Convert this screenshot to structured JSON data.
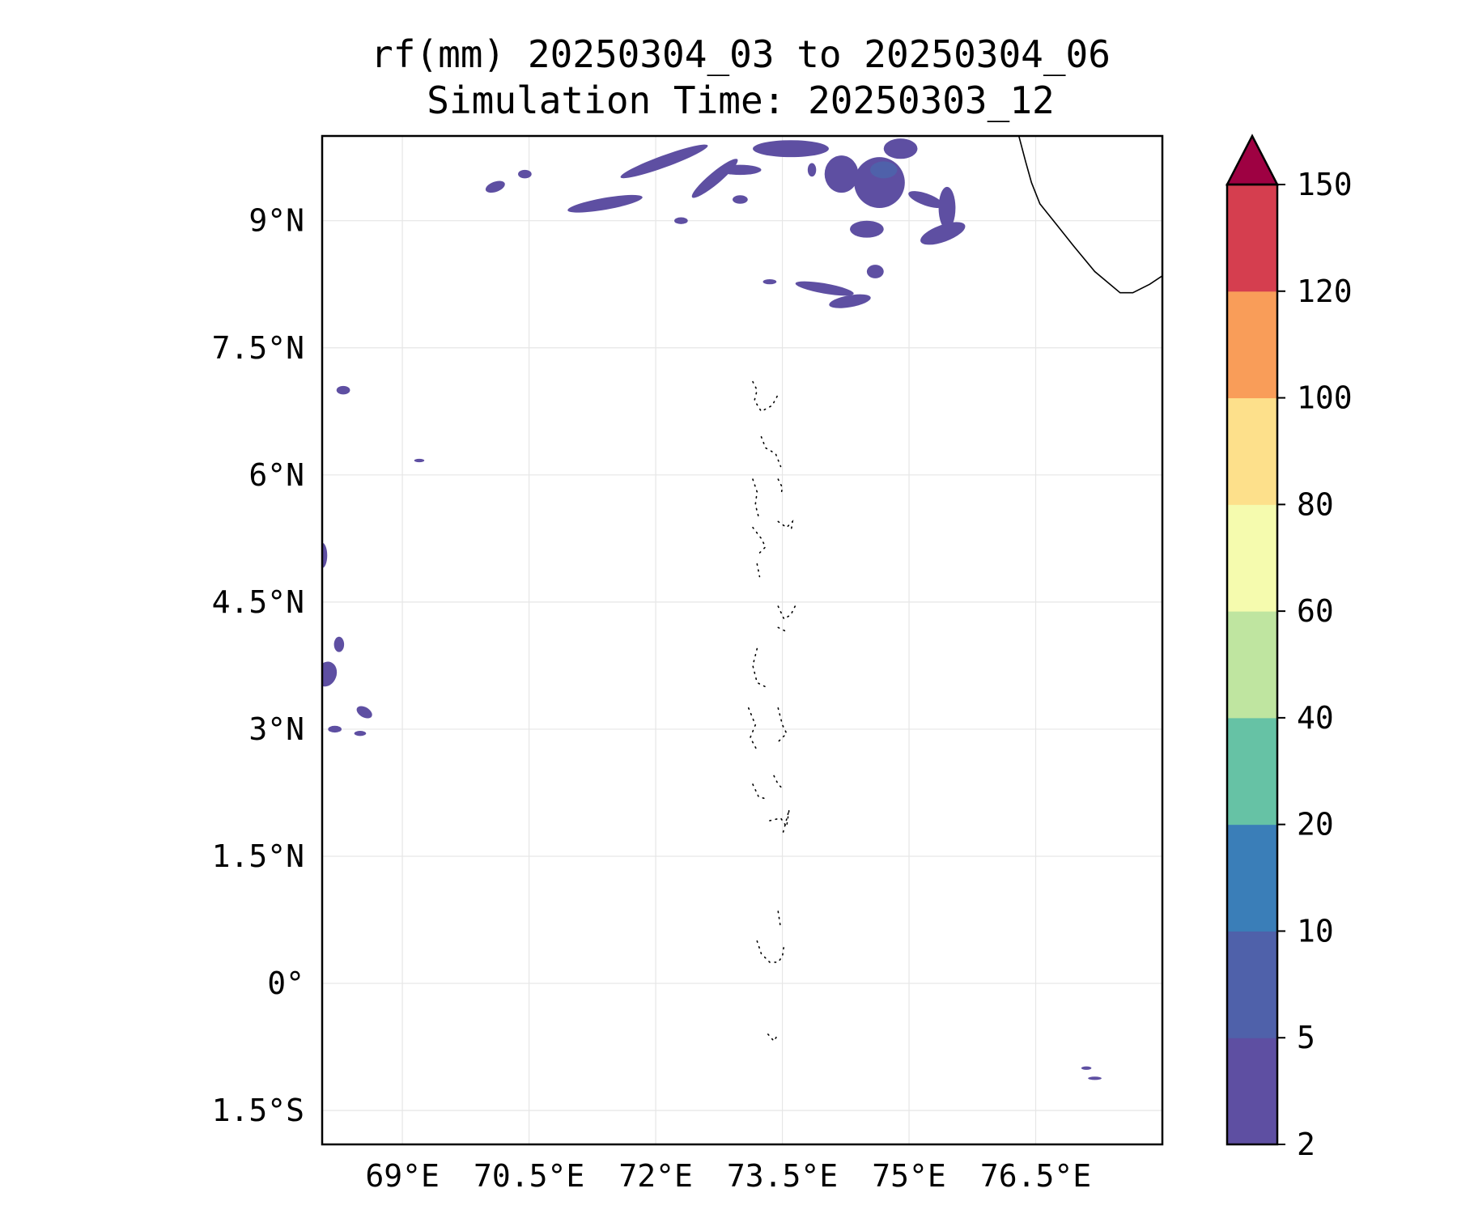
{
  "title": {
    "line1": "rf(mm) 20250304_03 to 20250304_06",
    "line2": "Simulation Time: 20250303_12"
  },
  "map": {
    "lon_range": [
      68.05,
      78.0
    ],
    "lat_range": [
      -1.9,
      10.0
    ],
    "x_ticks": [
      {
        "value": 69.0,
        "label": "69°E"
      },
      {
        "value": 70.5,
        "label": "70.5°E"
      },
      {
        "value": 72.0,
        "label": "72°E"
      },
      {
        "value": 73.5,
        "label": "73.5°E"
      },
      {
        "value": 75.0,
        "label": "75°E"
      },
      {
        "value": 76.5,
        "label": "76.5°E"
      }
    ],
    "y_ticks": [
      {
        "value": 9.0,
        "label": "9°N"
      },
      {
        "value": 7.5,
        "label": "7.5°N"
      },
      {
        "value": 6.0,
        "label": "6°N"
      },
      {
        "value": 4.5,
        "label": "4.5°N"
      },
      {
        "value": 3.0,
        "label": "3°N"
      },
      {
        "value": 1.5,
        "label": "1.5°N"
      },
      {
        "value": 0.0,
        "label": "0°"
      },
      {
        "value": -1.5,
        "label": "1.5°S"
      }
    ],
    "gridlines": true,
    "rain_blobs": [
      {
        "lon": 72.1,
        "lat": 9.7,
        "rx": 0.55,
        "ry": 0.07,
        "rot": -20,
        "level": 0
      },
      {
        "lon": 71.4,
        "lat": 9.2,
        "rx": 0.45,
        "ry": 0.07,
        "rot": -10,
        "level": 0
      },
      {
        "lon": 72.7,
        "lat": 9.5,
        "rx": 0.35,
        "ry": 0.07,
        "rot": -40,
        "level": 0
      },
      {
        "lon": 73.0,
        "lat": 9.6,
        "rx": 0.25,
        "ry": 0.06,
        "rot": 0,
        "level": 0
      },
      {
        "lon": 73.6,
        "lat": 9.85,
        "rx": 0.45,
        "ry": 0.1,
        "rot": 0,
        "level": 0
      },
      {
        "lon": 74.2,
        "lat": 9.55,
        "rx": 0.2,
        "ry": 0.22,
        "rot": 0,
        "level": 0
      },
      {
        "lon": 74.65,
        "lat": 9.45,
        "rx": 0.3,
        "ry": 0.3,
        "rot": 0,
        "level": 0
      },
      {
        "lon": 74.7,
        "lat": 9.6,
        "rx": 0.16,
        "ry": 0.1,
        "rot": 0,
        "level": 1
      },
      {
        "lon": 75.2,
        "lat": 9.25,
        "rx": 0.22,
        "ry": 0.07,
        "rot": 20,
        "level": 0
      },
      {
        "lon": 75.4,
        "lat": 8.85,
        "rx": 0.28,
        "ry": 0.1,
        "rot": -20,
        "level": 0
      },
      {
        "lon": 75.45,
        "lat": 9.15,
        "rx": 0.1,
        "ry": 0.25,
        "rot": 0,
        "level": 0
      },
      {
        "lon": 74.5,
        "lat": 8.9,
        "rx": 0.2,
        "ry": 0.1,
        "rot": 0,
        "level": 0
      },
      {
        "lon": 74.9,
        "lat": 9.85,
        "rx": 0.2,
        "ry": 0.12,
        "rot": 0,
        "level": 0
      },
      {
        "lon": 74.0,
        "lat": 8.2,
        "rx": 0.35,
        "ry": 0.06,
        "rot": 10,
        "level": 0
      },
      {
        "lon": 74.3,
        "lat": 8.05,
        "rx": 0.25,
        "ry": 0.07,
        "rot": -10,
        "level": 0
      },
      {
        "lon": 73.35,
        "lat": 8.28,
        "rx": 0.08,
        "ry": 0.03,
        "rot": 0,
        "level": 0
      },
      {
        "lon": 74.6,
        "lat": 8.4,
        "rx": 0.1,
        "ry": 0.08,
        "rot": 0,
        "level": 0
      },
      {
        "lon": 73.0,
        "lat": 9.25,
        "rx": 0.09,
        "ry": 0.05,
        "rot": 0,
        "level": 0
      },
      {
        "lon": 72.3,
        "lat": 9.0,
        "rx": 0.08,
        "ry": 0.04,
        "rot": 0,
        "level": 0
      },
      {
        "lon": 73.85,
        "lat": 9.6,
        "rx": 0.05,
        "ry": 0.08,
        "rot": 0,
        "level": 0
      },
      {
        "lon": 70.1,
        "lat": 9.4,
        "rx": 0.12,
        "ry": 0.06,
        "rot": -20,
        "level": 0
      },
      {
        "lon": 70.45,
        "lat": 9.55,
        "rx": 0.08,
        "ry": 0.05,
        "rot": 0,
        "level": 0
      },
      {
        "lon": 68.3,
        "lat": 7.0,
        "rx": 0.08,
        "ry": 0.05,
        "rot": 0,
        "level": 0
      },
      {
        "lon": 69.2,
        "lat": 6.17,
        "rx": 0.06,
        "ry": 0.02,
        "rot": 0,
        "level": 0
      },
      {
        "lon": 68.05,
        "lat": 5.05,
        "rx": 0.06,
        "ry": 0.15,
        "rot": 0,
        "level": 0
      },
      {
        "lon": 68.25,
        "lat": 4.0,
        "rx": 0.06,
        "ry": 0.09,
        "rot": 0,
        "level": 0
      },
      {
        "lon": 68.1,
        "lat": 3.65,
        "rx": 0.12,
        "ry": 0.15,
        "rot": 20,
        "level": 0
      },
      {
        "lon": 68.55,
        "lat": 3.2,
        "rx": 0.1,
        "ry": 0.06,
        "rot": 30,
        "level": 0
      },
      {
        "lon": 68.2,
        "lat": 3.0,
        "rx": 0.08,
        "ry": 0.04,
        "rot": 0,
        "level": 0
      },
      {
        "lon": 68.5,
        "lat": 2.95,
        "rx": 0.07,
        "ry": 0.03,
        "rot": 0,
        "level": 0
      },
      {
        "lon": 77.1,
        "lat": -1.0,
        "rx": 0.06,
        "ry": 0.02,
        "rot": 0,
        "level": 0
      },
      {
        "lon": 77.2,
        "lat": -1.12,
        "rx": 0.08,
        "ry": 0.02,
        "rot": 0,
        "level": 0
      }
    ],
    "coastline_india": [
      [
        76.3,
        10.0
      ],
      [
        76.38,
        9.7
      ],
      [
        76.45,
        9.45
      ],
      [
        76.55,
        9.2
      ],
      [
        76.75,
        8.95
      ],
      [
        76.95,
        8.7
      ],
      [
        77.2,
        8.4
      ],
      [
        77.5,
        8.15
      ],
      [
        77.65,
        8.15
      ],
      [
        77.85,
        8.25
      ],
      [
        78.0,
        8.35
      ]
    ],
    "maldives_atolls": [
      [
        [
          73.15,
          7.1
        ],
        [
          73.2,
          7.0
        ],
        [
          73.17,
          6.88
        ],
        [
          73.25,
          6.75
        ],
        [
          73.38,
          6.82
        ],
        [
          73.45,
          6.95
        ]
      ],
      [
        [
          73.25,
          6.45
        ],
        [
          73.3,
          6.32
        ],
        [
          73.42,
          6.25
        ],
        [
          73.48,
          6.1
        ]
      ],
      [
        [
          73.15,
          5.95
        ],
        [
          73.2,
          5.8
        ],
        [
          73.18,
          5.65
        ],
        [
          73.22,
          5.5
        ]
      ],
      [
        [
          73.45,
          5.95
        ],
        [
          73.5,
          5.85
        ],
        [
          73.48,
          5.75
        ]
      ],
      [
        [
          73.45,
          5.45
        ],
        [
          73.55,
          5.38
        ],
        [
          73.62,
          5.45
        ],
        [
          73.6,
          5.32
        ]
      ],
      [
        [
          73.15,
          5.38
        ],
        [
          73.25,
          5.25
        ],
        [
          73.3,
          5.15
        ],
        [
          73.2,
          5.05
        ]
      ],
      [
        [
          73.2,
          4.95
        ],
        [
          73.23,
          4.8
        ]
      ],
      [
        [
          73.45,
          4.45
        ],
        [
          73.52,
          4.3
        ],
        [
          73.6,
          4.35
        ],
        [
          73.65,
          4.45
        ]
      ],
      [
        [
          73.45,
          4.2
        ],
        [
          73.55,
          4.15
        ]
      ],
      [
        [
          73.2,
          3.95
        ],
        [
          73.15,
          3.75
        ],
        [
          73.2,
          3.55
        ],
        [
          73.3,
          3.5
        ]
      ],
      [
        [
          73.1,
          3.25
        ],
        [
          73.18,
          3.05
        ],
        [
          73.12,
          2.9
        ],
        [
          73.2,
          2.75
        ]
      ],
      [
        [
          73.45,
          3.25
        ],
        [
          73.5,
          3.05
        ],
        [
          73.55,
          2.95
        ],
        [
          73.45,
          2.85
        ]
      ],
      [
        [
          73.4,
          2.45
        ],
        [
          73.45,
          2.35
        ],
        [
          73.5,
          2.3
        ]
      ],
      [
        [
          73.15,
          2.35
        ],
        [
          73.22,
          2.2
        ],
        [
          73.3,
          2.18
        ]
      ],
      [
        [
          73.35,
          1.92
        ],
        [
          73.48,
          1.95
        ],
        [
          73.55,
          1.85
        ],
        [
          73.58,
          2.05
        ],
        [
          73.5,
          1.75
        ]
      ],
      [
        [
          73.45,
          0.85
        ],
        [
          73.48,
          0.65
        ]
      ],
      [
        [
          73.2,
          0.5
        ],
        [
          73.25,
          0.35
        ],
        [
          73.35,
          0.25
        ],
        [
          73.45,
          0.25
        ],
        [
          73.5,
          0.32
        ],
        [
          73.52,
          0.45
        ]
      ],
      [
        [
          73.33,
          -0.6
        ],
        [
          73.4,
          -0.68
        ],
        [
          73.45,
          -0.6
        ]
      ]
    ]
  },
  "colorbar": {
    "levels": [
      2,
      5,
      10,
      20,
      40,
      60,
      80,
      100,
      120,
      150
    ],
    "labels": [
      "2",
      "5",
      "10",
      "20",
      "40",
      "60",
      "80",
      "100",
      "120",
      "150"
    ],
    "colors": [
      "#5e4fa2",
      "#4f61aa",
      "#3a7eb8",
      "#66c2a5",
      "#bfe5a0",
      "#f5fbae",
      "#fde08b",
      "#f99d59",
      "#d53e4f"
    ],
    "extend_color": "#9e0142"
  }
}
